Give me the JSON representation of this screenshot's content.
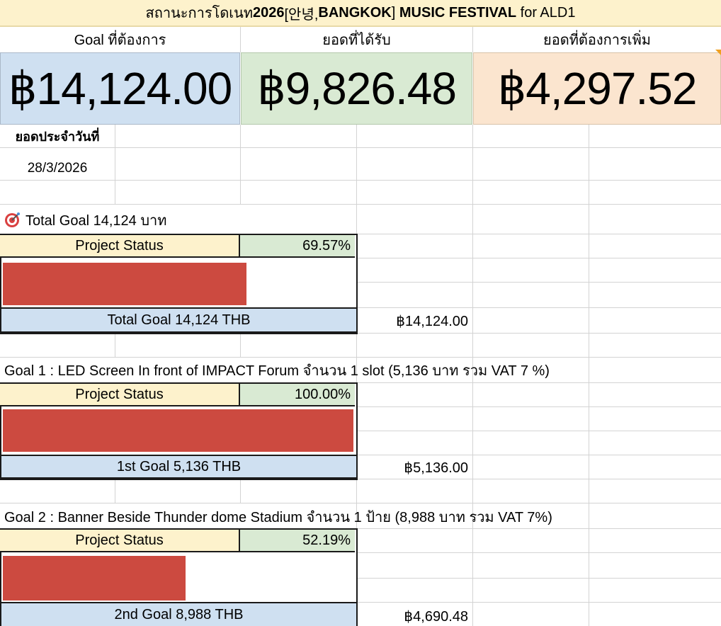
{
  "title": {
    "prefix": "สถานะการโดเนท ",
    "bold": "2026",
    "mid": " [안녕, ",
    "bold2": "BANGKOK",
    "mid2": "] ",
    "bold3": "MUSIC FESTIVAL",
    "suffix": " for ALD1"
  },
  "header": {
    "goal": "Goal ที่ต้องการ",
    "received": "ยอดที่ได้รับ",
    "remaining": "ยอดที่ต้องการเพิ่ม"
  },
  "totals": {
    "goal": "฿14,124.00",
    "received": "฿9,826.48",
    "remaining": "฿4,297.52"
  },
  "daily": {
    "label": "ยอดประจำวันที่",
    "date": "28/3/2026"
  },
  "total_section": {
    "heading": "Total Goal 14,124 บาท",
    "icon": "target-icon",
    "status_label": "Project Status",
    "percent": "69.57%",
    "progress_fraction": 0.6957,
    "goal_label": "Total Goal 14,124 THB",
    "amount": "฿14,124.00"
  },
  "goal1": {
    "heading": "Goal 1 : LED Screen In front of IMPACT Forum จำนวน 1 slot (5,136 บาท รวม VAT 7 %)",
    "status_label": "Project Status",
    "percent": "100.00%",
    "progress_fraction": 1.0,
    "goal_label": "1st Goal 5,136 THB",
    "amount": "฿5,136.00"
  },
  "goal2": {
    "heading": "Goal 2 : Banner Beside Thunder dome Stadium จำนวน 1 ป้าย (8,988 บาท รวม VAT 7%)",
    "status_label": "Project Status",
    "percent": "52.19%",
    "progress_fraction": 0.5219,
    "goal_label": "2nd Goal 8,988 THB",
    "amount": "฿4,690.48"
  },
  "colors": {
    "bar": "#cc4a40",
    "blue": "#cfe0f1",
    "green": "#d9ead3",
    "orange": "#fbe5cf",
    "yellow": "#fdf2cc"
  }
}
